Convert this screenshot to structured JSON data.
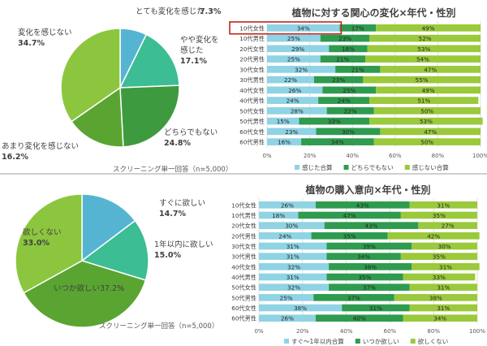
{
  "colors": {
    "pie_light_blue": "#56B4D3",
    "pie_teal": "#3CBD94",
    "pie_dark_green": "#3E9A3E",
    "pie_mid_green": "#5AA532",
    "pie_yellow_green": "#8CC63F",
    "bar_felt": "#8FD3E4",
    "bar_neutral": "#2E9B4E",
    "bar_not": "#9AC93B",
    "highlight_box": "#C0261E",
    "grid": "#D9D9D9",
    "divider": "#BFBFBF",
    "text": "#404040"
  },
  "chart_data": [
    {
      "type": "pie",
      "slices": [
        {
          "name": "とても変化を感じた",
          "value": 7.3,
          "label_lines": [
            "とても変化を感じた"
          ],
          "value_text": "7.3%"
        },
        {
          "name": "やや変化を感じた",
          "value": 17.1,
          "label_lines": [
            "やや変化を",
            "感じた"
          ],
          "value_text": "17.1%"
        },
        {
          "name": "どちらでもない",
          "value": 24.8,
          "label_lines": [
            "どちらでもない"
          ],
          "value_text": "24.8%"
        },
        {
          "name": "あまり変化を感じない",
          "value": 16.2,
          "label_lines": [
            "あまり変化を感じない"
          ],
          "value_text": "16.2%"
        },
        {
          "name": "変化を感じない",
          "value": 34.7,
          "label_lines": [
            "変化を感じない"
          ],
          "value_text": "34.7%"
        }
      ],
      "note": "スクリーニング単一回答（n=5,000）"
    },
    {
      "type": "bar",
      "orientation": "horizontal-stacked-100",
      "title": "植物に対する関心の変化×年代・性別",
      "categories": [
        "10代女性",
        "10代男性",
        "20代女性",
        "20代男性",
        "30代女性",
        "30代男性",
        "40代女性",
        "40代男性",
        "50代女性",
        "50代男性",
        "60代女性",
        "60代男性"
      ],
      "series": [
        {
          "name": "感じた合算",
          "values": [
            34,
            25,
            29,
            25,
            32,
            22,
            26,
            24,
            28,
            15,
            23,
            16
          ]
        },
        {
          "name": "どちらでもない",
          "values": [
            17,
            23,
            18,
            21,
            21,
            23,
            25,
            24,
            22,
            33,
            30,
            34
          ]
        },
        {
          "name": "感じない合算",
          "values": [
            49,
            52,
            53,
            54,
            47,
            55,
            49,
            51,
            50,
            53,
            47,
            50
          ]
        }
      ],
      "x_ticks": [
        "0%",
        "20%",
        "40%",
        "60%",
        "80%",
        "100%"
      ],
      "xlim": [
        0,
        100
      ],
      "highlighted_category": "10代女性",
      "legend_position": "bottom"
    },
    {
      "type": "pie",
      "slices": [
        {
          "name": "すぐに欲しい",
          "value": 14.7,
          "label_lines": [
            "すぐに欲しい"
          ],
          "value_text": "14.7%"
        },
        {
          "name": "1年以内に欲しい",
          "value": 15.0,
          "label_lines": [
            "1年以内に欲しい"
          ],
          "value_text": "15.0%"
        },
        {
          "name": "いつか欲しい",
          "value": 37.2,
          "label_lines": [
            "いつか欲しい37.2%"
          ],
          "value_text": ""
        },
        {
          "name": "欲しくない",
          "value": 33.0,
          "label_lines": [
            "欲しくない"
          ],
          "value_text": "33.0%"
        }
      ],
      "note": "スクリーニング単一回答（n=5,000）"
    },
    {
      "type": "bar",
      "orientation": "horizontal-stacked-100",
      "title": "植物の購入意向×年代・性別",
      "categories": [
        "10代女性",
        "10代男性",
        "20代女性",
        "20代男性",
        "30代女性",
        "30代男性",
        "40代女性",
        "40代男性",
        "50代女性",
        "50代男性",
        "60代女性",
        "60代男性"
      ],
      "series": [
        {
          "name": "すぐ〜1年以内合算",
          "values": [
            26,
            18,
            30,
            24,
            31,
            31,
            32,
            31,
            32,
            25,
            38,
            26
          ]
        },
        {
          "name": "いつか欲しい",
          "values": [
            43,
            47,
            43,
            35,
            39,
            34,
            38,
            35,
            37,
            37,
            31,
            40
          ]
        },
        {
          "name": "欲しくない",
          "values": [
            31,
            35,
            27,
            42,
            30,
            35,
            31,
            33,
            31,
            38,
            31,
            34
          ]
        }
      ],
      "x_ticks": [
        "0%",
        "20%",
        "40%",
        "60%",
        "80%",
        "100%"
      ],
      "xlim": [
        0,
        100
      ],
      "legend_position": "bottom"
    }
  ]
}
